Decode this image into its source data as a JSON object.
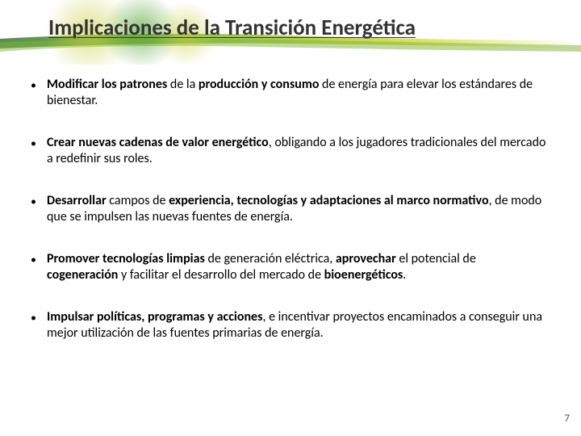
{
  "title": "Implicaciones de la Transición Energética",
  "bullets": [
    {
      "parts": [
        {
          "text": "Modificar los patrones",
          "bold": true
        },
        {
          "text": " de la "
        },
        {
          "text": "producción y consumo",
          "bold": true
        },
        {
          "text": " de energía para elevar los estándares de bienestar."
        }
      ]
    },
    {
      "parts": [
        {
          "text": "Crear nuevas cadenas de valor energético",
          "bold": true
        },
        {
          "text": ", obligando a los jugadores tradicionales del mercado a redefinir sus roles."
        }
      ]
    },
    {
      "parts": [
        {
          "text": "Desarrollar",
          "bold": true
        },
        {
          "text": " campos de "
        },
        {
          "text": "experiencia, tecnologías y adaptaciones al marco normativo",
          "bold": true
        },
        {
          "text": ", de modo que se impulsen las nuevas fuentes de energía."
        }
      ]
    },
    {
      "parts": [
        {
          "text": "Promover tecnologías limpias",
          "bold": true
        },
        {
          "text": " de generación eléctrica, "
        },
        {
          "text": "aprovechar",
          "bold": true
        },
        {
          "text": " el potencial de "
        },
        {
          "text": "cogeneración",
          "bold": true
        },
        {
          "text": " y facilitar el desarrollo del mercado de "
        },
        {
          "text": "bioenergéticos",
          "bold": true
        },
        {
          "text": "."
        }
      ]
    },
    {
      "parts": [
        {
          "text": "Impulsar políticas, programas y acciones",
          "bold": true
        },
        {
          "text": ", e incentivar proyectos encaminados a conseguir una mejor utilización de las fuentes primarias de energía."
        }
      ]
    }
  ],
  "pageNumber": "7",
  "colors": {
    "bandDark": "#3a7a32",
    "bandMid": "#7fb43a",
    "bandLight": "#d4d93a",
    "circleGreen": "#5aa83a",
    "circleYellow": "#c8d040"
  }
}
